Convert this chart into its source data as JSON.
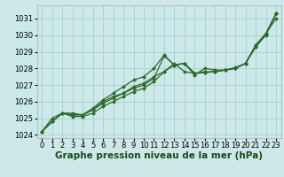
{
  "xlabel": "Graphe pression niveau de la mer (hPa)",
  "bg_color": "#cce8e8",
  "grid_color": "#aad4d4",
  "line_color": "#2d6a2d",
  "marker_color": "#2d6a2d",
  "ylim": [
    1023.8,
    1031.8
  ],
  "xlim": [
    -0.5,
    23.5
  ],
  "yticks": [
    1024,
    1025,
    1026,
    1027,
    1028,
    1029,
    1030,
    1031
  ],
  "xticks": [
    0,
    1,
    2,
    3,
    4,
    5,
    6,
    7,
    8,
    9,
    10,
    11,
    12,
    13,
    14,
    15,
    16,
    17,
    18,
    19,
    20,
    21,
    22,
    23
  ],
  "series": [
    [
      1024.2,
      1024.8,
      1025.3,
      1025.3,
      1025.2,
      1025.5,
      1026.0,
      1026.3,
      1026.5,
      1026.9,
      1027.1,
      1027.5,
      1027.8,
      1028.3,
      1027.8,
      1027.7,
      1027.8,
      1027.8,
      1027.9,
      1028.0,
      1028.3,
      1029.4,
      1030.1,
      1031.3
    ],
    [
      1024.2,
      1024.8,
      1025.3,
      1025.2,
      1025.2,
      1025.6,
      1026.1,
      1026.5,
      1026.9,
      1027.3,
      1027.5,
      1028.0,
      1028.8,
      1028.2,
      1028.3,
      1027.7,
      1027.75,
      1027.8,
      1027.9,
      1028.05,
      1028.3,
      1029.3,
      1030.0,
      1031.3
    ],
    [
      1024.2,
      1024.8,
      1025.3,
      1025.2,
      1025.2,
      1025.5,
      1025.9,
      1026.2,
      1026.5,
      1026.8,
      1027.0,
      1027.4,
      1028.75,
      1028.2,
      1028.3,
      1027.7,
      1027.75,
      1027.8,
      1027.9,
      1028.0,
      1028.3,
      1029.4,
      1030.1,
      1031.3
    ],
    [
      1024.2,
      1025.0,
      1025.3,
      1025.1,
      1025.1,
      1025.3,
      1025.7,
      1026.0,
      1026.3,
      1026.6,
      1026.8,
      1027.2,
      1027.8,
      1028.2,
      1028.3,
      1027.6,
      1028.0,
      1027.9,
      1027.9,
      1028.0,
      1028.3,
      1029.3,
      1030.1,
      1031.0
    ]
  ],
  "xlabel_fontsize": 7.5,
  "tick_fontsize": 6.0
}
